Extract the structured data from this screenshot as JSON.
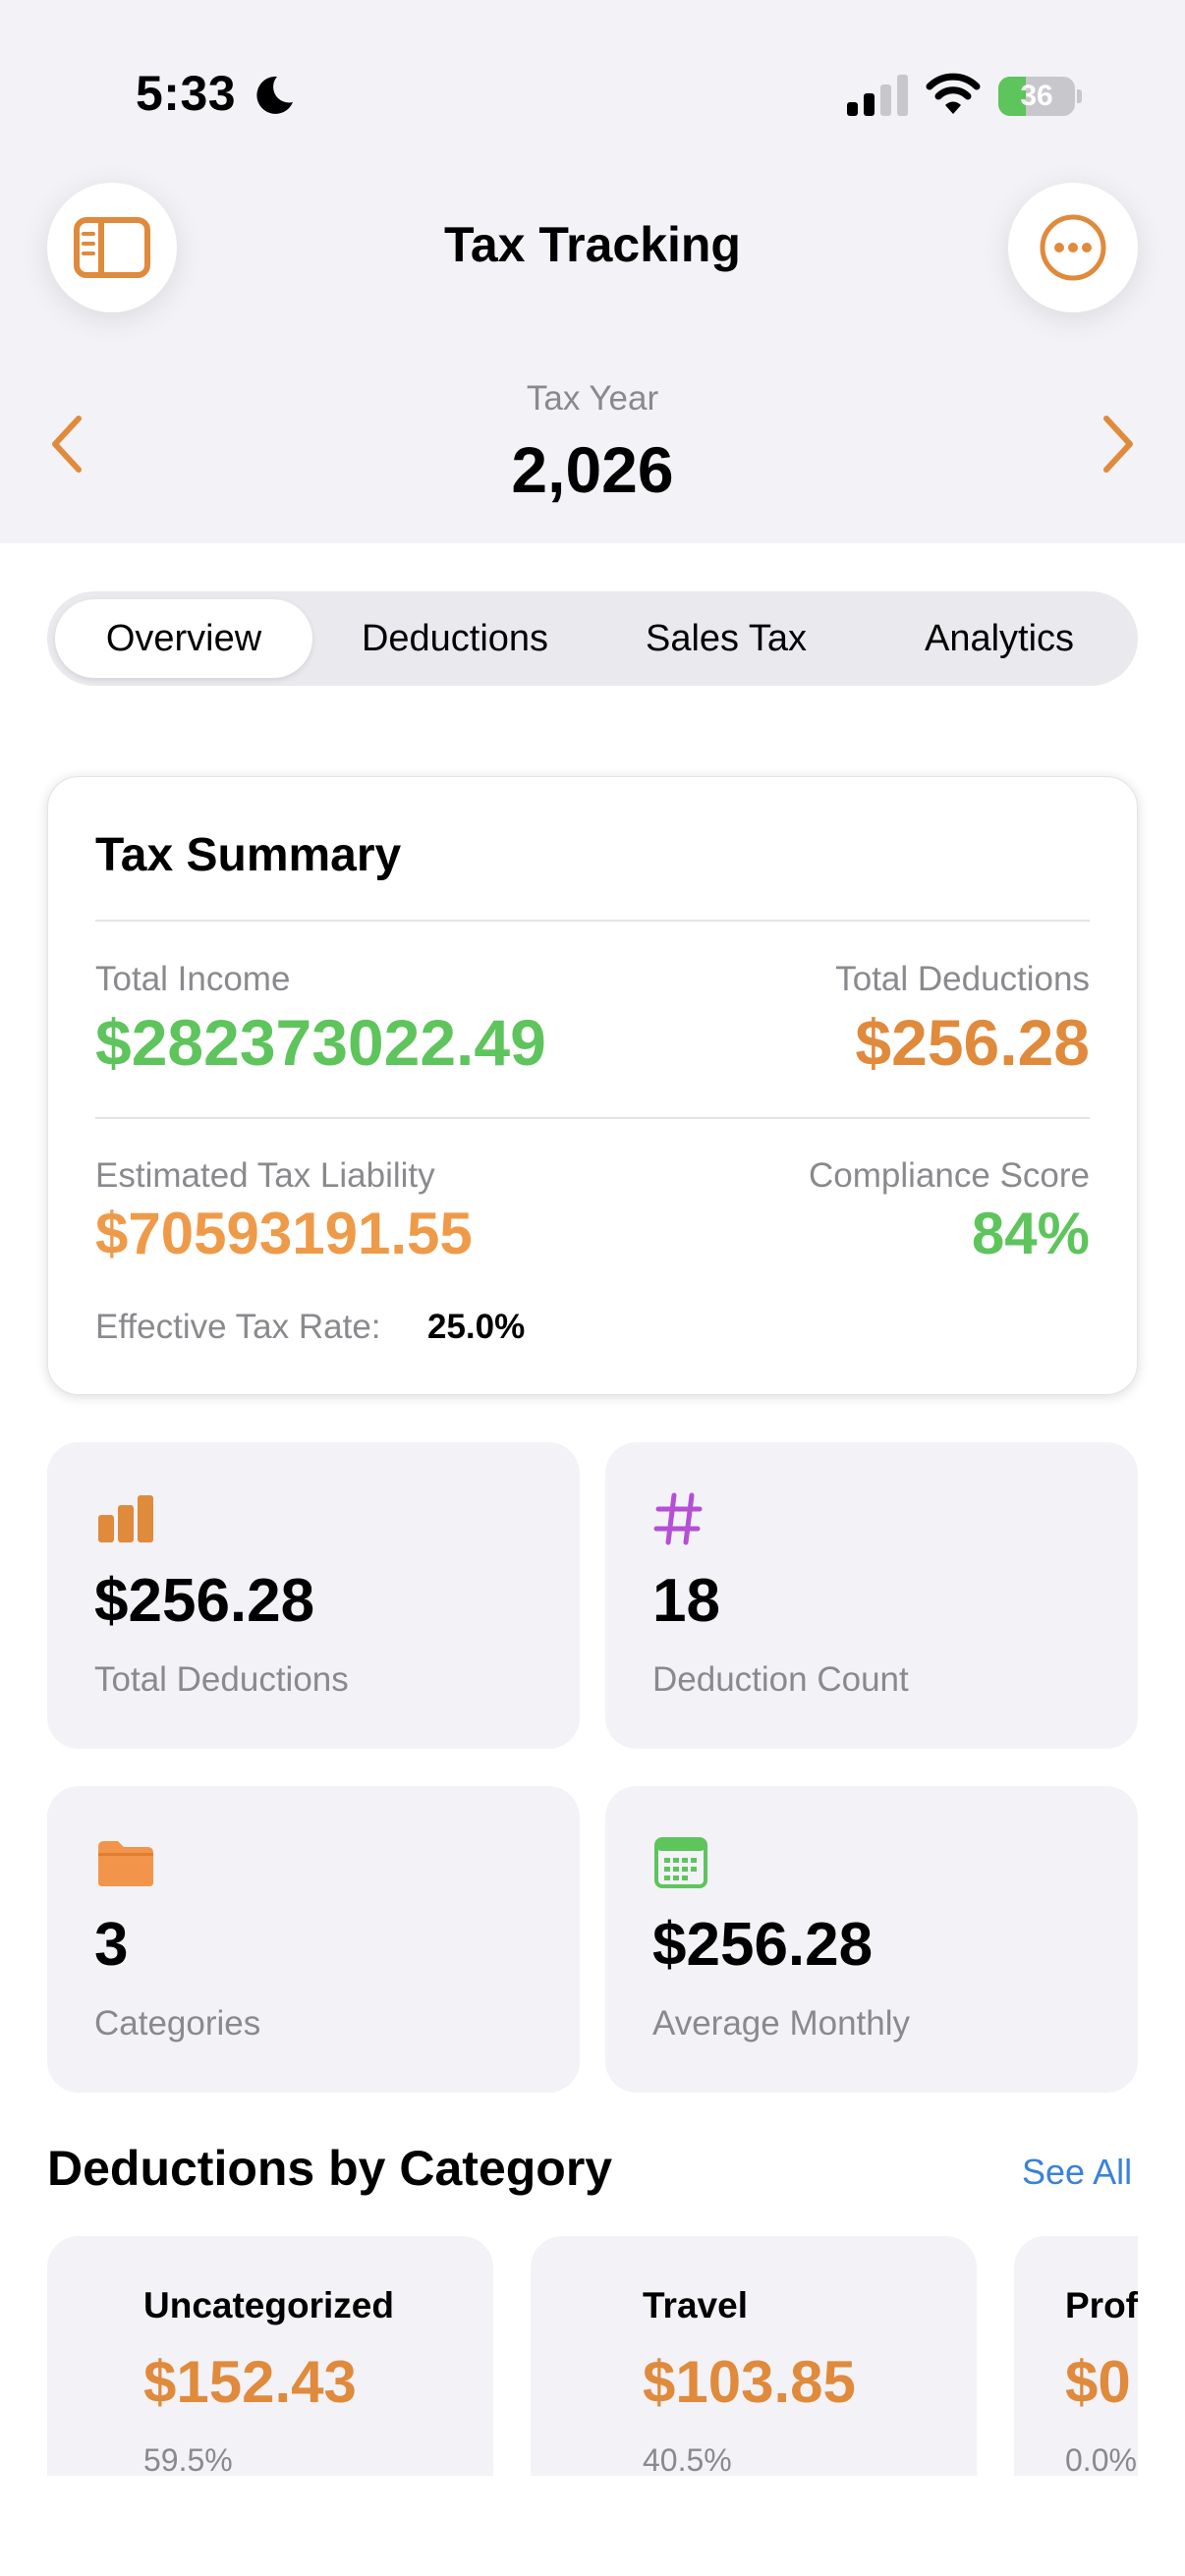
{
  "status_bar": {
    "time": "5:33",
    "battery": "36",
    "battery_level": 0.36
  },
  "nav": {
    "title": "Tax Tracking"
  },
  "year_selector": {
    "label": "Tax Year",
    "value": "2,026"
  },
  "tabs": [
    {
      "label": "Overview",
      "selected": true
    },
    {
      "label": "Deductions",
      "selected": false
    },
    {
      "label": "Sales Tax",
      "selected": false
    },
    {
      "label": "Analytics",
      "selected": false
    }
  ],
  "summary": {
    "title": "Tax Summary",
    "total_income_label": "Total Income",
    "total_income_value": "$282373022.49",
    "total_deductions_label": "Total Deductions",
    "total_deductions_value": "$256.28",
    "liability_label": "Estimated Tax Liability",
    "liability_value": "$70593191.55",
    "compliance_label": "Compliance Score",
    "compliance_value": "84%",
    "rate_label": "Effective Tax Rate:",
    "rate_value": "25.0%"
  },
  "stats": [
    {
      "icon": "bar-chart-icon",
      "value": "$256.28",
      "label": "Total Deductions"
    },
    {
      "icon": "number-sign-icon",
      "value": "18",
      "label": "Deduction Count"
    },
    {
      "icon": "folder-icon",
      "value": "3",
      "label": "Categories"
    },
    {
      "icon": "calendar-icon",
      "value": "$256.28",
      "label": "Average Monthly"
    }
  ],
  "categories_section": {
    "title": "Deductions by Category",
    "see_all": "See All"
  },
  "categories": [
    {
      "name": "Uncategorized",
      "amount": "$152.43",
      "percent": "59.5%"
    },
    {
      "name": "Travel",
      "amount": "$103.85",
      "percent": "40.5%"
    },
    {
      "name": "Prof",
      "amount": "$0",
      "percent": "0.0%"
    }
  ],
  "colors": {
    "accent": "#e08a3c",
    "green": "#5ec45c",
    "purple": "#b44fd6",
    "link": "#3b82d6"
  }
}
